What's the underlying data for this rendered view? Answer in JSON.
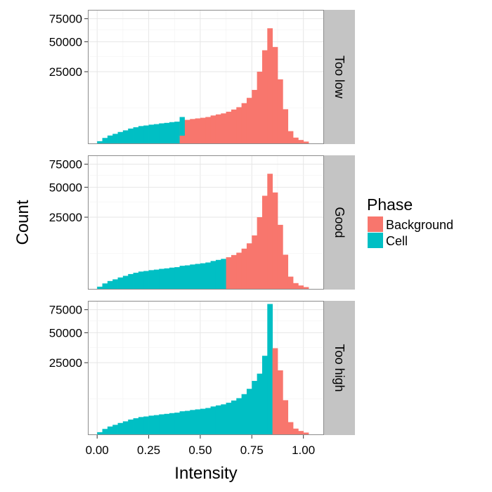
{
  "chart_data": {
    "type": "bar",
    "subtype": "faceted-histogram",
    "xlabel": "Intensity",
    "ylabel": "Count",
    "x_ticks": [
      "0.00",
      "0.25",
      "0.50",
      "0.75",
      "1.00"
    ],
    "x_tick_values": [
      0.0,
      0.25,
      0.5,
      0.75,
      1.0
    ],
    "xlim": [
      -0.045,
      1.1
    ],
    "y_scale": "sqrt",
    "y_ticks": [
      "25000",
      "50000",
      "75000"
    ],
    "y_tick_values": [
      25000,
      50000,
      75000
    ],
    "ylim": [
      0,
      86000
    ],
    "bin_width": 0.025,
    "grid": true,
    "legend": {
      "title": "Phase",
      "position": "right",
      "entries": [
        {
          "label": "Background",
          "color": "#F8766D"
        },
        {
          "label": "Cell",
          "color": "#00BFC4"
        }
      ]
    },
    "facets": [
      {
        "label": "Too low",
        "bin_starts": [
          0.0,
          0.025,
          0.05,
          0.075,
          0.1,
          0.125,
          0.15,
          0.175,
          0.2,
          0.225,
          0.25,
          0.275,
          0.3,
          0.325,
          0.35,
          0.375,
          0.4,
          0.425,
          0.45,
          0.475,
          0.5,
          0.525,
          0.55,
          0.575,
          0.6,
          0.625,
          0.65,
          0.675,
          0.7,
          0.725,
          0.75,
          0.775,
          0.8,
          0.825,
          0.85,
          0.875,
          0.9,
          0.925,
          0.95,
          0.975,
          1.0
        ],
        "values": [
          40,
          180,
          350,
          500,
          700,
          900,
          1150,
          1350,
          1550,
          1650,
          1800,
          1900,
          2050,
          2150,
          2300,
          2400,
          2700,
          2800,
          3000,
          3150,
          3300,
          3500,
          3900,
          4200,
          4500,
          5000,
          5700,
          6500,
          8000,
          10200,
          14000,
          25000,
          42000,
          64000,
          45000,
          20000,
          5800,
          800,
          200,
          80,
          30
        ],
        "phases": [
          "Cell",
          "Cell",
          "Cell",
          "Cell",
          "Cell",
          "Cell",
          "Cell",
          "Cell",
          "Cell",
          "Cell",
          "Cell",
          "Cell",
          "Cell",
          "Cell",
          "Cell",
          "Cell",
          "Background",
          "Background",
          "Background",
          "Background",
          "Background",
          "Background",
          "Background",
          "Background",
          "Background",
          "Background",
          "Background",
          "Background",
          "Background",
          "Background",
          "Background",
          "Background",
          "Background",
          "Background",
          "Background",
          "Background",
          "Background",
          "Background",
          "Background",
          "Background",
          "Background"
        ],
        "overlay": {
          "bin_start": 0.4,
          "value": 3500,
          "phase": "Cell"
        }
      },
      {
        "label": "Good",
        "bin_starts": [
          0.0,
          0.025,
          0.05,
          0.075,
          0.1,
          0.125,
          0.15,
          0.175,
          0.2,
          0.225,
          0.25,
          0.275,
          0.3,
          0.325,
          0.35,
          0.375,
          0.4,
          0.425,
          0.45,
          0.475,
          0.5,
          0.525,
          0.55,
          0.575,
          0.6,
          0.625,
          0.65,
          0.675,
          0.7,
          0.725,
          0.75,
          0.775,
          0.8,
          0.825,
          0.85,
          0.875,
          0.9,
          0.925,
          0.95,
          0.975,
          1.0
        ],
        "values": [
          40,
          180,
          350,
          500,
          700,
          900,
          1150,
          1350,
          1550,
          1650,
          1800,
          1900,
          2050,
          2150,
          2300,
          2400,
          2700,
          2800,
          3000,
          3150,
          3300,
          3500,
          3900,
          4200,
          4500,
          5000,
          5700,
          6500,
          8000,
          10200,
          14000,
          25000,
          42000,
          64000,
          45000,
          20000,
          5800,
          800,
          200,
          80,
          30
        ],
        "phases": [
          "Cell",
          "Cell",
          "Cell",
          "Cell",
          "Cell",
          "Cell",
          "Cell",
          "Cell",
          "Cell",
          "Cell",
          "Cell",
          "Cell",
          "Cell",
          "Cell",
          "Cell",
          "Cell",
          "Cell",
          "Cell",
          "Cell",
          "Cell",
          "Cell",
          "Cell",
          "Cell",
          "Cell",
          "Cell",
          "Background",
          "Background",
          "Background",
          "Background",
          "Background",
          "Background",
          "Background",
          "Background",
          "Background",
          "Background",
          "Background",
          "Background",
          "Background",
          "Background",
          "Background",
          "Background"
        ]
      },
      {
        "label": "Too high",
        "bin_starts": [
          0.0,
          0.025,
          0.05,
          0.075,
          0.1,
          0.125,
          0.15,
          0.175,
          0.2,
          0.225,
          0.25,
          0.275,
          0.3,
          0.325,
          0.35,
          0.375,
          0.4,
          0.425,
          0.45,
          0.475,
          0.5,
          0.525,
          0.55,
          0.575,
          0.6,
          0.625,
          0.65,
          0.675,
          0.7,
          0.725,
          0.75,
          0.775,
          0.8,
          0.825,
          0.85,
          0.875,
          0.9,
          0.925,
          0.95,
          0.975,
          1.0
        ],
        "values": [
          40,
          180,
          350,
          500,
          700,
          900,
          1150,
          1350,
          1550,
          1650,
          1800,
          1900,
          2050,
          2150,
          2300,
          2400,
          2700,
          2800,
          3000,
          3150,
          3300,
          3500,
          3900,
          4200,
          4500,
          5000,
          5700,
          6500,
          8000,
          10200,
          14000,
          18000,
          30000,
          82000,
          36000,
          20000,
          5800,
          800,
          200,
          80,
          30
        ],
        "phases": [
          "Cell",
          "Cell",
          "Cell",
          "Cell",
          "Cell",
          "Cell",
          "Cell",
          "Cell",
          "Cell",
          "Cell",
          "Cell",
          "Cell",
          "Cell",
          "Cell",
          "Cell",
          "Cell",
          "Cell",
          "Cell",
          "Cell",
          "Cell",
          "Cell",
          "Cell",
          "Cell",
          "Cell",
          "Cell",
          "Cell",
          "Cell",
          "Cell",
          "Cell",
          "Cell",
          "Cell",
          "Cell",
          "Cell",
          "Cell",
          "Background",
          "Background",
          "Background",
          "Background",
          "Background",
          "Background",
          "Background"
        ]
      }
    ]
  }
}
